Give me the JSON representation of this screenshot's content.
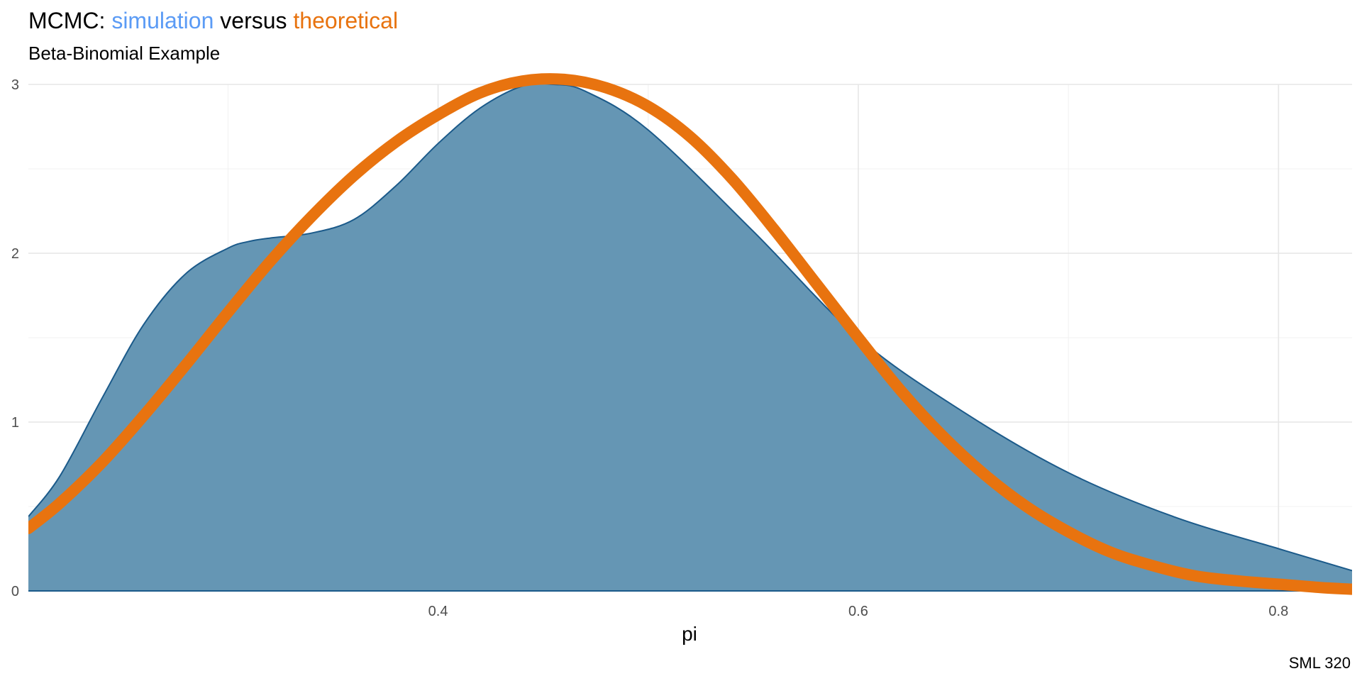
{
  "chart_data": {
    "type": "area",
    "title": {
      "prefix": "MCMC: ",
      "simulation": "simulation",
      "middle": " versus ",
      "theoretical": "theoretical"
    },
    "subtitle": "Beta-Binomial Example",
    "xlabel": "pi",
    "ylabel": "",
    "caption": "SML 320",
    "xlim": [
      0.205,
      0.835
    ],
    "ylim": [
      0,
      3
    ],
    "x_ticks": [
      0.4,
      0.6,
      0.8
    ],
    "x_tick_labels": [
      "0.4",
      "0.6",
      "0.8"
    ],
    "y_ticks": [
      0,
      1,
      2,
      3
    ],
    "y_tick_labels": [
      "0",
      "1",
      "2",
      "3"
    ],
    "grid": true,
    "legend": "none",
    "colors": {
      "simulation_title": "#5b9bf5",
      "theoretical_title": "#e8730f",
      "density_fill": "#6596b4",
      "density_stroke": "#1b5a8a",
      "theoretical_line": "#e8730f"
    },
    "series": [
      {
        "name": "simulation",
        "style": "filled density",
        "x": [
          0.205,
          0.22,
          0.24,
          0.26,
          0.28,
          0.3,
          0.31,
          0.32,
          0.34,
          0.36,
          0.38,
          0.4,
          0.42,
          0.44,
          0.455,
          0.47,
          0.5,
          0.55,
          0.6,
          0.65,
          0.7,
          0.75,
          0.8,
          0.835
        ],
        "y": [
          0.44,
          0.68,
          1.14,
          1.58,
          1.88,
          2.03,
          2.07,
          2.09,
          2.12,
          2.2,
          2.4,
          2.65,
          2.86,
          2.99,
          3.0,
          2.96,
          2.73,
          2.13,
          1.5,
          1.06,
          0.7,
          0.44,
          0.25,
          0.12
        ]
      },
      {
        "name": "theoretical",
        "style": "thick line",
        "x": [
          0.205,
          0.22,
          0.24,
          0.26,
          0.28,
          0.3,
          0.32,
          0.34,
          0.36,
          0.38,
          0.4,
          0.42,
          0.44,
          0.46,
          0.48,
          0.5,
          0.52,
          0.54,
          0.56,
          0.58,
          0.6,
          0.62,
          0.64,
          0.66,
          0.68,
          0.7,
          0.72,
          0.74,
          0.76,
          0.78,
          0.8,
          0.82,
          0.835
        ],
        "y": [
          0.37,
          0.52,
          0.76,
          1.04,
          1.34,
          1.65,
          1.95,
          2.22,
          2.46,
          2.66,
          2.82,
          2.95,
          3.02,
          3.03,
          2.98,
          2.87,
          2.69,
          2.44,
          2.14,
          1.82,
          1.5,
          1.19,
          0.92,
          0.69,
          0.5,
          0.35,
          0.23,
          0.15,
          0.09,
          0.06,
          0.04,
          0.02,
          0.01
        ]
      }
    ]
  }
}
